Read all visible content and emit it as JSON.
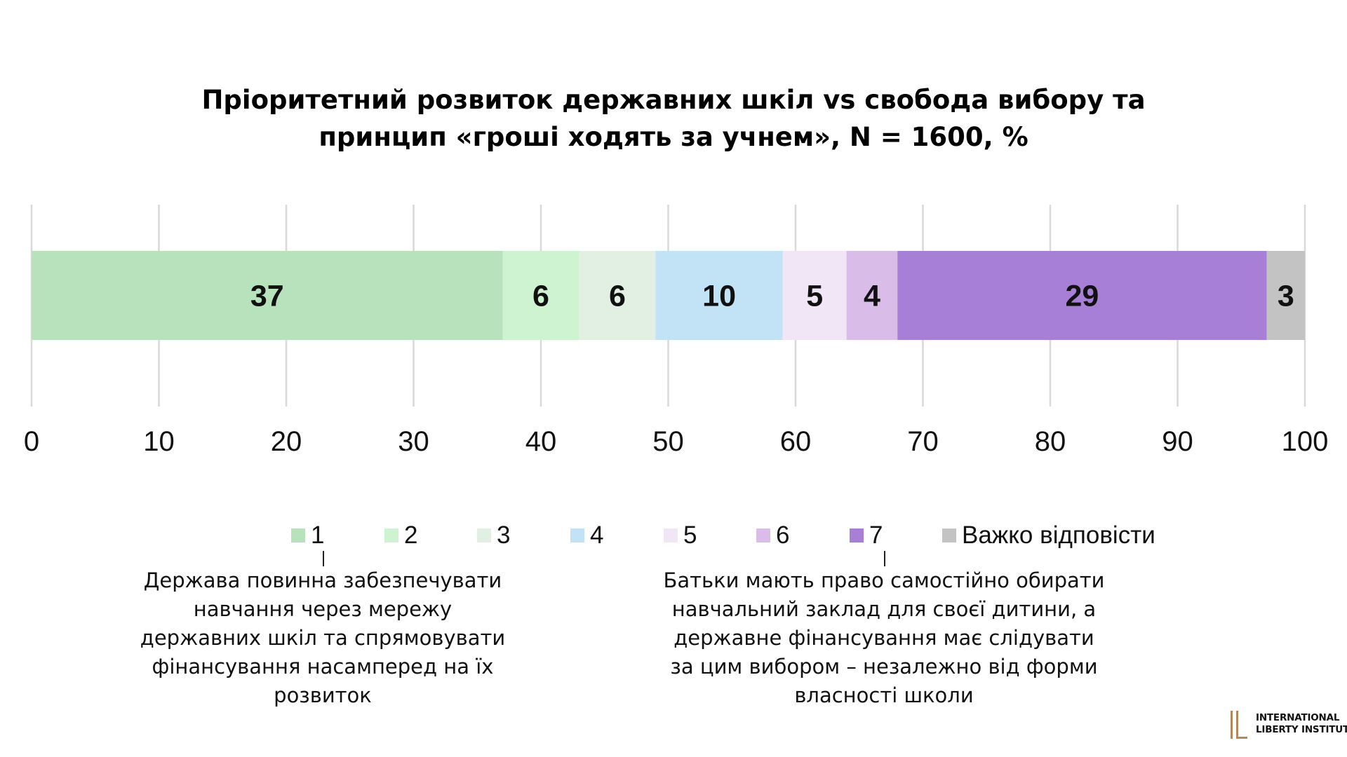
{
  "title": {
    "line1": "Пріоритетний розвиток державних шкіл vs свобода вибору та",
    "line2": "принцип «гроші ходять за учнем», N = 1600,  %"
  },
  "chart_data": {
    "type": "bar",
    "orientation": "horizontal-stacked",
    "title": "Пріоритетний розвиток державних шкіл vs свобода вибору та принцип «гроші ходять за учнем», N = 1600,  %",
    "xlim": [
      0,
      100
    ],
    "x_ticks": [
      "0",
      "10",
      "20",
      "30",
      "40",
      "50",
      "60",
      "70",
      "80",
      "90",
      "100"
    ],
    "grid": true,
    "legend_position": "bottom",
    "series": [
      {
        "name": "1",
        "value": 37,
        "color": "#b8e2bb"
      },
      {
        "name": "2",
        "value": 6,
        "color": "#cdf3d0"
      },
      {
        "name": "3",
        "value": 6,
        "color": "#e2f0e4"
      },
      {
        "name": "4",
        "value": 10,
        "color": "#c2e2f6"
      },
      {
        "name": "5",
        "value": 5,
        "color": "#f1e6f6"
      },
      {
        "name": "6",
        "value": 4,
        "color": "#d9bde8"
      },
      {
        "name": "7",
        "value": 29,
        "color": "#a87fd7"
      },
      {
        "name": "Важко відповісти",
        "value": 3,
        "color": "#c3c3c3"
      }
    ],
    "annotations": {
      "left": "Держава повинна забезпечувати навчання через мережу державних шкіл та спрямовувати фінансування насамперед на їх розвиток",
      "right": "Батьки мають право самостійно обирати навчальний заклад для своєї дитини, а державне фінансування має слідувати за цим вибором – незалежно від форми власності школи"
    }
  },
  "notes": {
    "left_lines": [
      "Держава повинна забезпечувати",
      "навчання через мережу",
      "державних шкіл та спрямовувати",
      "фінансування насамперед на їх",
      "розвиток"
    ],
    "right_lines": [
      "Батьки мають право самостійно обирати",
      "навчальний заклад для своєї дитини, а",
      "державне фінансування має слідувати",
      "за цим вибором – незалежно від форми",
      "власності школи"
    ]
  },
  "logo": {
    "line1": "INTERNATIONAL",
    "line2": "LIBERTY INSTITUTE",
    "color": "#b08a5a"
  },
  "colors": {
    "grid": "#d9d9d9"
  }
}
